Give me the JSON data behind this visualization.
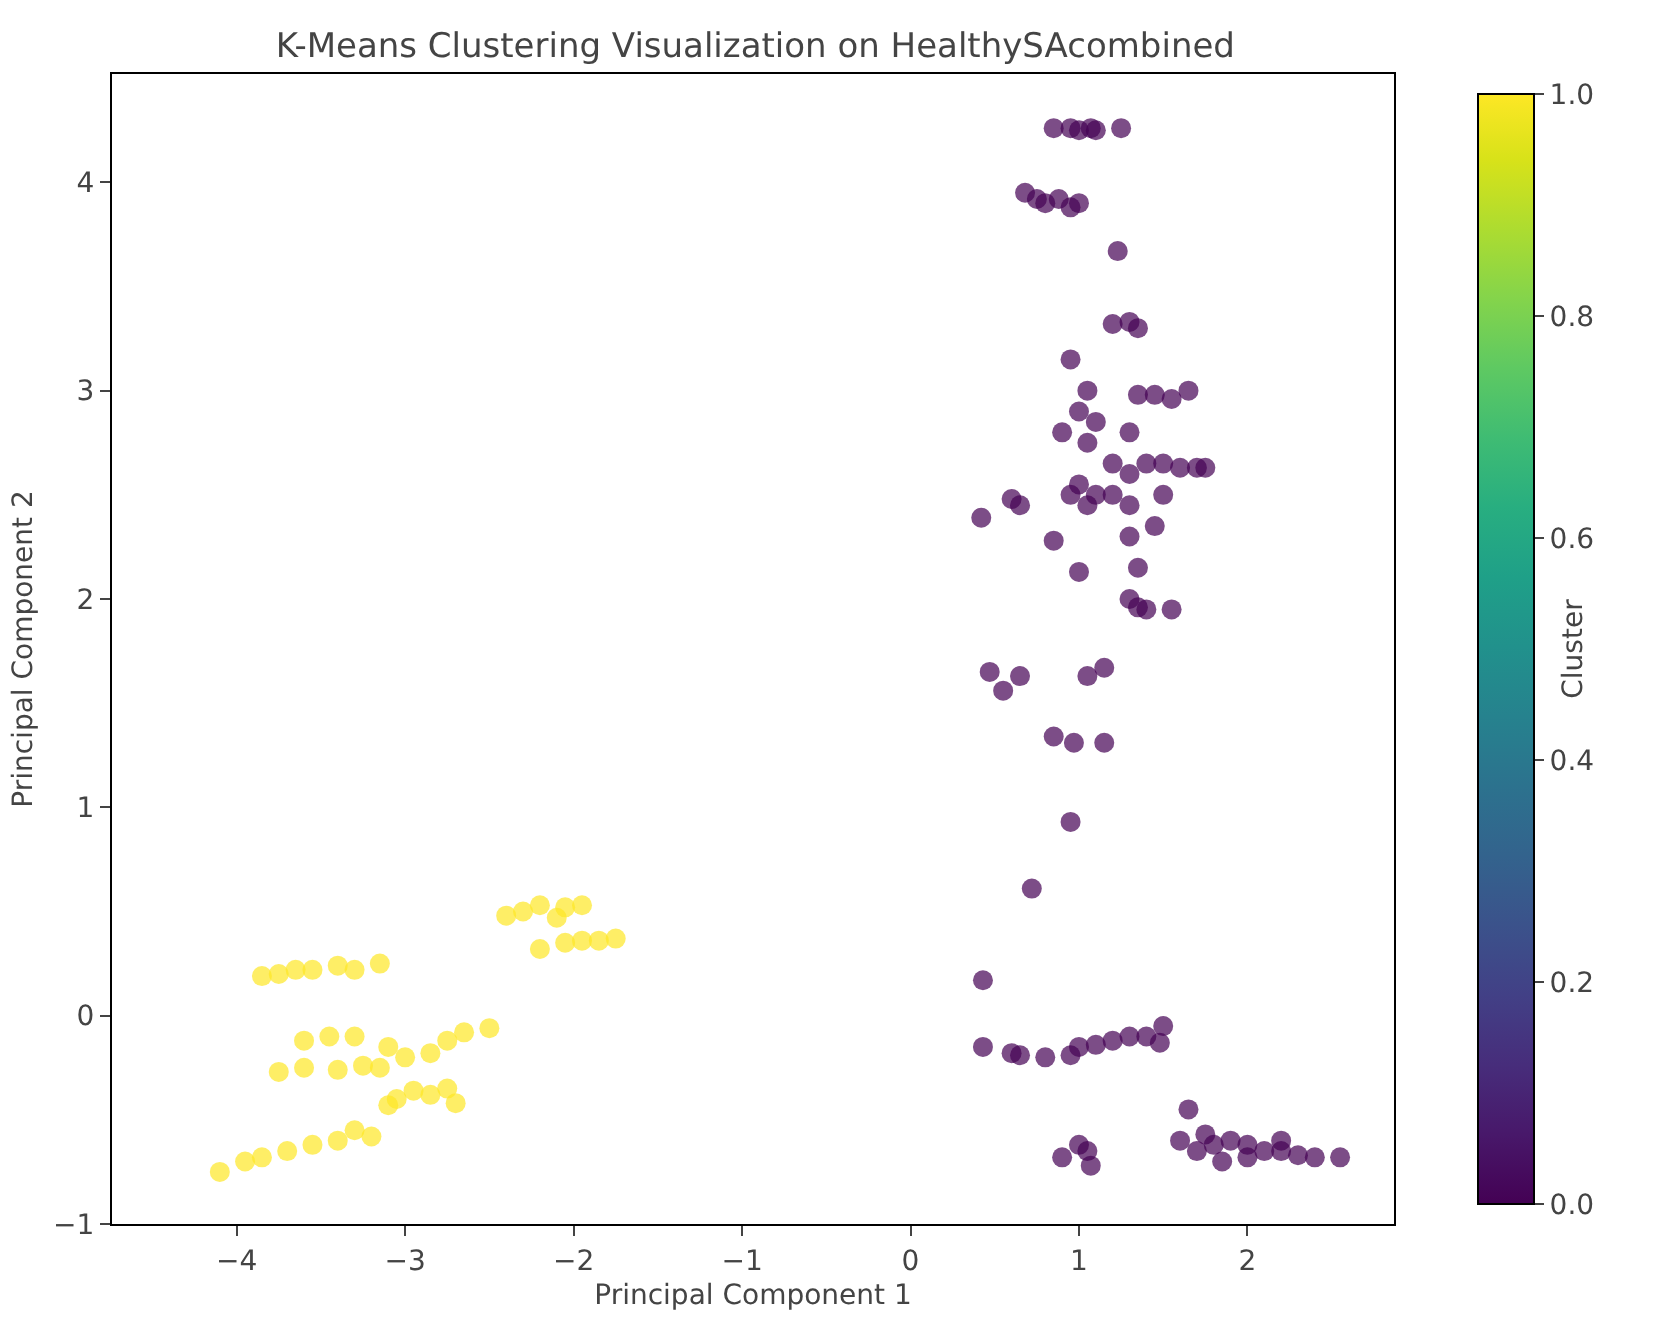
{
  "chart_data": {
    "type": "scatter",
    "title": "K-Means Clustering Visualization on HealthySAcombined",
    "xlabel": "Principal Component 1",
    "ylabel": "Principal Component 2",
    "clabel": "Cluster",
    "marker": "circle",
    "x": [
      0.85,
      0.95,
      1.0,
      1.07,
      1.1,
      1.25,
      0.68,
      0.75,
      0.8,
      0.88,
      0.95,
      1.0,
      1.23,
      1.2,
      1.3,
      1.35,
      0.95,
      1.05,
      1.35,
      1.45,
      1.55,
      1.65,
      1.0,
      1.1,
      1.3,
      0.9,
      1.05,
      1.4,
      1.5,
      1.6,
      1.7,
      1.75,
      1.2,
      1.3,
      0.95,
      1.0,
      1.05,
      1.1,
      1.2,
      1.3,
      0.6,
      0.65,
      1.5,
      0.42,
      1.3,
      0.85,
      1.45,
      1.0,
      1.35,
      1.3,
      1.35,
      1.4,
      1.55,
      0.47,
      0.55,
      0.65,
      1.05,
      1.15,
      0.85,
      0.97,
      1.15,
      0.95,
      0.72,
      0.43,
      0.43,
      0.6,
      0.65,
      0.8,
      0.95,
      1.0,
      1.1,
      1.2,
      1.3,
      1.4,
      1.48,
      1.5,
      0.9,
      1.0,
      1.05,
      1.07,
      1.6,
      1.65,
      1.7,
      1.8,
      1.9,
      2.0,
      2.1,
      2.2,
      2.3,
      2.4,
      2.55,
      1.75,
      2.0,
      1.85,
      2.2,
      -2.4,
      -2.3,
      -2.2,
      -2.05,
      -1.95,
      -2.1,
      -2.2,
      -2.05,
      -1.95,
      -1.85,
      -1.75,
      -3.85,
      -3.75,
      -3.65,
      -3.55,
      -3.4,
      -3.3,
      -3.15,
      -3.6,
      -3.45,
      -3.3,
      -3.1,
      -3.0,
      -2.85,
      -2.75,
      -2.65,
      -2.5,
      -3.75,
      -3.6,
      -3.4,
      -3.25,
      -3.15,
      -3.05,
      -2.95,
      -2.85,
      -2.75,
      -2.7,
      -3.1,
      -4.1,
      -3.95,
      -3.85,
      -3.7,
      -3.55,
      -3.4,
      -3.3,
      -3.2
    ],
    "values": [
      4.26,
      4.26,
      4.25,
      4.26,
      4.25,
      4.26,
      3.95,
      3.92,
      3.9,
      3.92,
      3.88,
      3.9,
      3.67,
      3.32,
      3.33,
      3.3,
      3.15,
      3.0,
      2.98,
      2.98,
      2.96,
      3.0,
      2.9,
      2.85,
      2.8,
      2.8,
      2.75,
      2.65,
      2.65,
      2.63,
      2.63,
      2.63,
      2.65,
      2.6,
      2.5,
      2.55,
      2.45,
      2.5,
      2.5,
      2.45,
      2.48,
      2.45,
      2.5,
      2.39,
      2.3,
      2.28,
      2.35,
      2.13,
      2.15,
      2.0,
      1.96,
      1.95,
      1.95,
      1.65,
      1.56,
      1.63,
      1.63,
      1.67,
      1.34,
      1.31,
      1.31,
      0.93,
      0.61,
      0.17,
      -0.15,
      -0.18,
      -0.19,
      -0.2,
      -0.19,
      -0.15,
      -0.14,
      -0.12,
      -0.1,
      -0.1,
      -0.13,
      -0.05,
      -0.68,
      -0.62,
      -0.65,
      -0.72,
      -0.6,
      -0.45,
      -0.65,
      -0.62,
      -0.6,
      -0.62,
      -0.65,
      -0.65,
      -0.67,
      -0.68,
      -0.68,
      -0.57,
      -0.68,
      -0.7,
      -0.6,
      0.48,
      0.5,
      0.53,
      0.52,
      0.53,
      0.47,
      0.32,
      0.35,
      0.36,
      0.36,
      0.37,
      0.19,
      0.2,
      0.22,
      0.22,
      0.24,
      0.22,
      0.25,
      -0.12,
      -0.1,
      -0.1,
      -0.15,
      -0.2,
      -0.18,
      -0.12,
      -0.08,
      -0.06,
      -0.27,
      -0.25,
      -0.26,
      -0.24,
      -0.25,
      -0.4,
      -0.36,
      -0.38,
      -0.35,
      -0.42,
      -0.43,
      -0.75,
      -0.7,
      -0.68,
      -0.65,
      -0.62,
      -0.6,
      -0.55,
      -0.58
    ],
    "cvalues": [
      0,
      0,
      0,
      0,
      0,
      0,
      0,
      0,
      0,
      0,
      0,
      0,
      0,
      0,
      0,
      0,
      0,
      0,
      0,
      0,
      0,
      0,
      0,
      0,
      0,
      0,
      0,
      0,
      0,
      0,
      0,
      0,
      0,
      0,
      0,
      0,
      0,
      0,
      0,
      0,
      0,
      0,
      0,
      0,
      0,
      0,
      0,
      0,
      0,
      0,
      0,
      0,
      0,
      0,
      0,
      0,
      0,
      0,
      0,
      0,
      0,
      0,
      0,
      0,
      0,
      0,
      0,
      0,
      0,
      0,
      0,
      0,
      0,
      0,
      0,
      0,
      0,
      0,
      0,
      0,
      0,
      0,
      0,
      0,
      0,
      0,
      0,
      0,
      0,
      0,
      0,
      0,
      0,
      0,
      0,
      1,
      1,
      1,
      1,
      1,
      1,
      1,
      1,
      1,
      1,
      1,
      1,
      1,
      1,
      1,
      1,
      1,
      1,
      1,
      1,
      1,
      1,
      1,
      1,
      1,
      1,
      1,
      1,
      1,
      1,
      1,
      1,
      1,
      1,
      1,
      1,
      1,
      1,
      1,
      1,
      1,
      1,
      1,
      1,
      1,
      1
    ],
    "xlim": [
      -4.74,
      2.87
    ],
    "ylim": [
      -1,
      4.52
    ],
    "xticks": [
      -4,
      -3,
      -2,
      -1,
      0,
      1,
      2
    ],
    "yticks": [
      -1,
      0,
      1,
      2,
      3,
      4
    ],
    "clim": [
      0,
      1
    ],
    "cticks": [
      {
        "value": 0,
        "label": "0.0"
      },
      {
        "value": 0.2,
        "label": "0.2"
      },
      {
        "value": 0.4,
        "label": "0.4"
      },
      {
        "value": 0.6,
        "label": "0.6"
      },
      {
        "value": 0.8,
        "label": "0.8"
      },
      {
        "value": 1,
        "label": "1.0"
      }
    ]
  }
}
